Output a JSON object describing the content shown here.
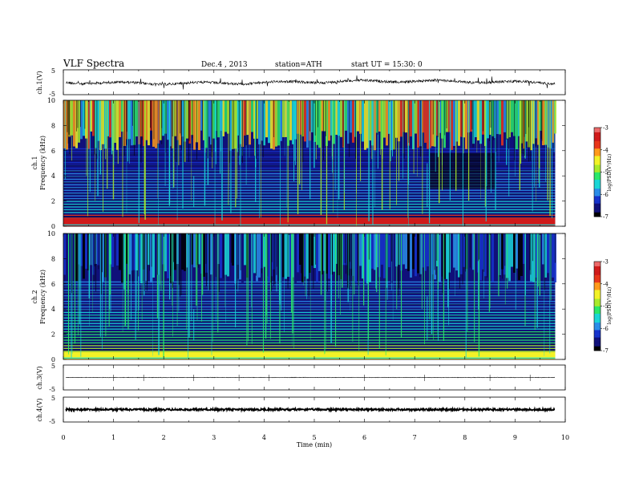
{
  "header": {
    "title": "VLF  Spectra",
    "date": "Dec.4  , 2013",
    "station": "station=ATH",
    "start": "start  UT  =   15:30: 0"
  },
  "colors": {
    "palette": [
      "#000000",
      "#10107a",
      "#1633cc",
      "#2a8ce8",
      "#1ad6d6",
      "#2ae86a",
      "#a8ea2a",
      "#f2f227",
      "#ff9a1a",
      "#e8361a",
      "#d01a1a",
      "#ec6a6a",
      "#ffffff"
    ]
  },
  "chart_data": [
    {
      "type": "line",
      "ylabel": "ch.1(V)",
      "ylim": [
        -5,
        5
      ],
      "yticks": [
        "5",
        "-5"
      ],
      "xlim": [
        0,
        10
      ],
      "x_end": 9.8,
      "note": "time series of channel 1"
    },
    {
      "type": "heatmap",
      "ylabel": "Frequency  (kHz)",
      "channel_label": "ch.1",
      "ylim": [
        0,
        10
      ],
      "yticks": [
        "0",
        "2",
        "4",
        "6",
        "8",
        "10"
      ],
      "xlim": [
        0,
        10
      ],
      "x_end": 9.8,
      "colorbar": {
        "label": "log(PSD(V²/Hz)",
        "ticks": [
          "-3",
          "-4",
          "-5",
          "-6",
          "-7"
        ],
        "range": [
          -7,
          -3
        ]
      }
    },
    {
      "type": "heatmap",
      "ylabel": "Frequency  (kHz)",
      "channel_label": "ch.2",
      "ylim": [
        0,
        10
      ],
      "yticks": [
        "0",
        "2",
        "4",
        "6",
        "8",
        "10"
      ],
      "xlim": [
        0,
        10
      ],
      "x_end": 9.8,
      "colorbar": {
        "label": "log(PSD(V²/Hz)",
        "ticks": [
          "-3",
          "-4",
          "-5",
          "-6",
          "-7"
        ],
        "range": [
          -7,
          -3
        ]
      }
    },
    {
      "type": "line",
      "ylabel": "ch.3(V)",
      "ylim": [
        -5,
        5
      ],
      "yticks": [
        "5",
        "-5"
      ],
      "xlim": [
        0,
        10
      ],
      "x_end": 9.8
    },
    {
      "type": "line",
      "ylabel": "ch.4(V)",
      "ylim": [
        -5,
        5
      ],
      "yticks": [
        "5",
        "-5"
      ],
      "xlim": [
        0,
        10
      ],
      "x_end": 9.8,
      "xlabel": "Time  (min)",
      "xticks": [
        "0",
        "1",
        "2",
        "3",
        "4",
        "5",
        "6",
        "7",
        "8",
        "9",
        "10"
      ]
    }
  ]
}
